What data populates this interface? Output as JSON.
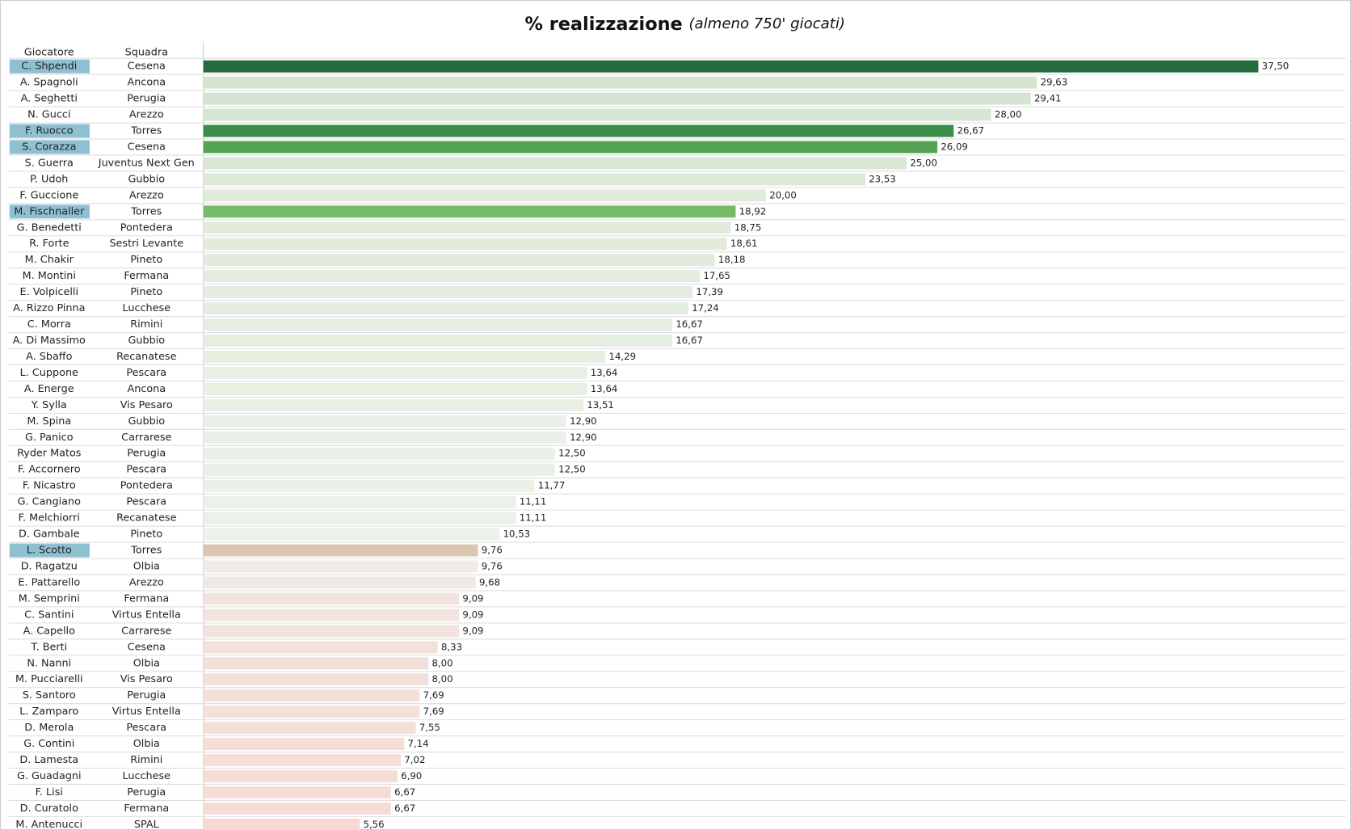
{
  "chart_data": {
    "type": "bar",
    "title": "% realizzazione",
    "subtitle": "(almeno 750' giocati)",
    "column_headers": [
      "Giocatore",
      "Squadra"
    ],
    "categories": [
      "C. Shpendi",
      "A. Spagnoli",
      "A. Seghetti",
      "N. Gucci",
      "F. Ruocco",
      "S. Corazza",
      "S. Guerra",
      "P. Udoh",
      "F. Guccione",
      "M. Fischnaller",
      "G. Benedetti",
      "R. Forte",
      "M. Chakir",
      "M. Montini",
      "E. Volpicelli",
      "A. Rizzo Pinna",
      "C. Morra",
      "A. Di Massimo",
      "A. Sbaffo",
      "L. Cuppone",
      "A. Energe",
      "Y. Sylla",
      "M. Spina",
      "G. Panico",
      "Ryder Matos",
      "F. Accornero",
      "F. Nicastro",
      "G. Cangiano",
      "F. Melchiorri",
      "D. Gambale",
      "L. Scotto",
      "D. Ragatzu",
      "E. Pattarello",
      "M. Semprini",
      "C. Santini",
      "A. Capello",
      "T. Berti",
      "N. Nanni",
      "M. Pucciarelli",
      "S. Santoro",
      "L. Zamparo",
      "D. Merola",
      "G. Contini",
      "D. Lamesta",
      "G. Guadagni",
      "F. Lisi",
      "D. Curatolo",
      "M. Antenucci"
    ],
    "teams": [
      "Cesena",
      "Ancona",
      "Perugia",
      "Arezzo",
      "Torres",
      "Cesena",
      "Juventus Next Gen",
      "Gubbio",
      "Arezzo",
      "Torres",
      "Pontedera",
      "Sestri Levante",
      "Pineto",
      "Fermana",
      "Pineto",
      "Lucchese",
      "Rimini",
      "Gubbio",
      "Recanatese",
      "Pescara",
      "Ancona",
      "Vis Pesaro",
      "Gubbio",
      "Carrarese",
      "Perugia",
      "Pescara",
      "Pontedera",
      "Pescara",
      "Recanatese",
      "Pineto",
      "Torres",
      "Olbia",
      "Arezzo",
      "Fermana",
      "Virtus Entella",
      "Carrarese",
      "Cesena",
      "Olbia",
      "Vis Pesaro",
      "Perugia",
      "Virtus Entella",
      "Pescara",
      "Olbia",
      "Rimini",
      "Lucchese",
      "Perugia",
      "Fermana",
      "SPAL"
    ],
    "values": [
      37.5,
      29.63,
      29.41,
      28,
      26.67,
      26.09,
      25,
      23.53,
      20,
      18.92,
      18.75,
      18.61,
      18.18,
      17.65,
      17.39,
      17.24,
      16.67,
      16.67,
      14.29,
      13.64,
      13.64,
      13.51,
      12.9,
      12.9,
      12.5,
      12.5,
      11.77,
      11.11,
      11.11,
      10.53,
      9.76,
      9.76,
      9.68,
      9.09,
      9.09,
      9.09,
      8.33,
      8,
      8,
      7.69,
      7.69,
      7.55,
      7.14,
      7.02,
      6.9,
      6.67,
      6.67,
      5.56
    ],
    "value_labels": [
      "37,50",
      "29,63",
      "29,41",
      "28,00",
      "26,67",
      "26,09",
      "25,00",
      "23,53",
      "20,00",
      "18,92",
      "18,75",
      "18,61",
      "18,18",
      "17,65",
      "17,39",
      "17,24",
      "16,67",
      "16,67",
      "14,29",
      "13,64",
      "13,64",
      "13,51",
      "12,90",
      "12,90",
      "12,50",
      "12,50",
      "11,77",
      "11,11",
      "11,11",
      "10,53",
      "9,76",
      "9,76",
      "9,68",
      "9,09",
      "9,09",
      "9,09",
      "8,33",
      "8,00",
      "8,00",
      "7,69",
      "7,69",
      "7,55",
      "7,14",
      "7,02",
      "6,90",
      "6,67",
      "6,67",
      "5,56"
    ],
    "colors": [
      "#256b3e",
      "#d4e4d1",
      "#d5e4d2",
      "#d7e6d4",
      "#3d8d4a",
      "#54a455",
      "#dae7d7",
      "#dce9d9",
      "#e0ebdc",
      "#74bc67",
      "#e1ecdd",
      "#e1ecdd",
      "#e2ecde",
      "#e2ede0",
      "#e3ede0",
      "#e3ede0",
      "#e4eee1",
      "#e4eee1",
      "#e7efe3",
      "#e8f0e4",
      "#e8f0e4",
      "#e8f0e4",
      "#e9f0e5",
      "#e9f0e5",
      "#e9f0e6",
      "#e9f0e6",
      "#eaf1e7",
      "#ebf1e8",
      "#ebf1e8",
      "#ecf1e9",
      "#dac6b2",
      "#eeebe8",
      "#efe8e5",
      "#f3e3df",
      "#f3e3df",
      "#f3e3df",
      "#f4e1dc",
      "#f4e0db",
      "#f4e0db",
      "#f5dfda",
      "#f5dfda",
      "#f5dfd9",
      "#f5ddd8",
      "#f5ddd8",
      "#f5dcd7",
      "#f5dcd6",
      "#f5dcd6",
      "#f6d9d3"
    ],
    "highlight": [
      true,
      false,
      false,
      false,
      true,
      true,
      false,
      false,
      false,
      true,
      false,
      false,
      false,
      false,
      false,
      false,
      false,
      false,
      false,
      false,
      false,
      false,
      false,
      false,
      false,
      false,
      false,
      false,
      false,
      false,
      true,
      false,
      false,
      false,
      false,
      false,
      false,
      false,
      false,
      false,
      false,
      false,
      false,
      false,
      false,
      false,
      false,
      false
    ],
    "xlim": [
      0,
      40.7
    ]
  }
}
